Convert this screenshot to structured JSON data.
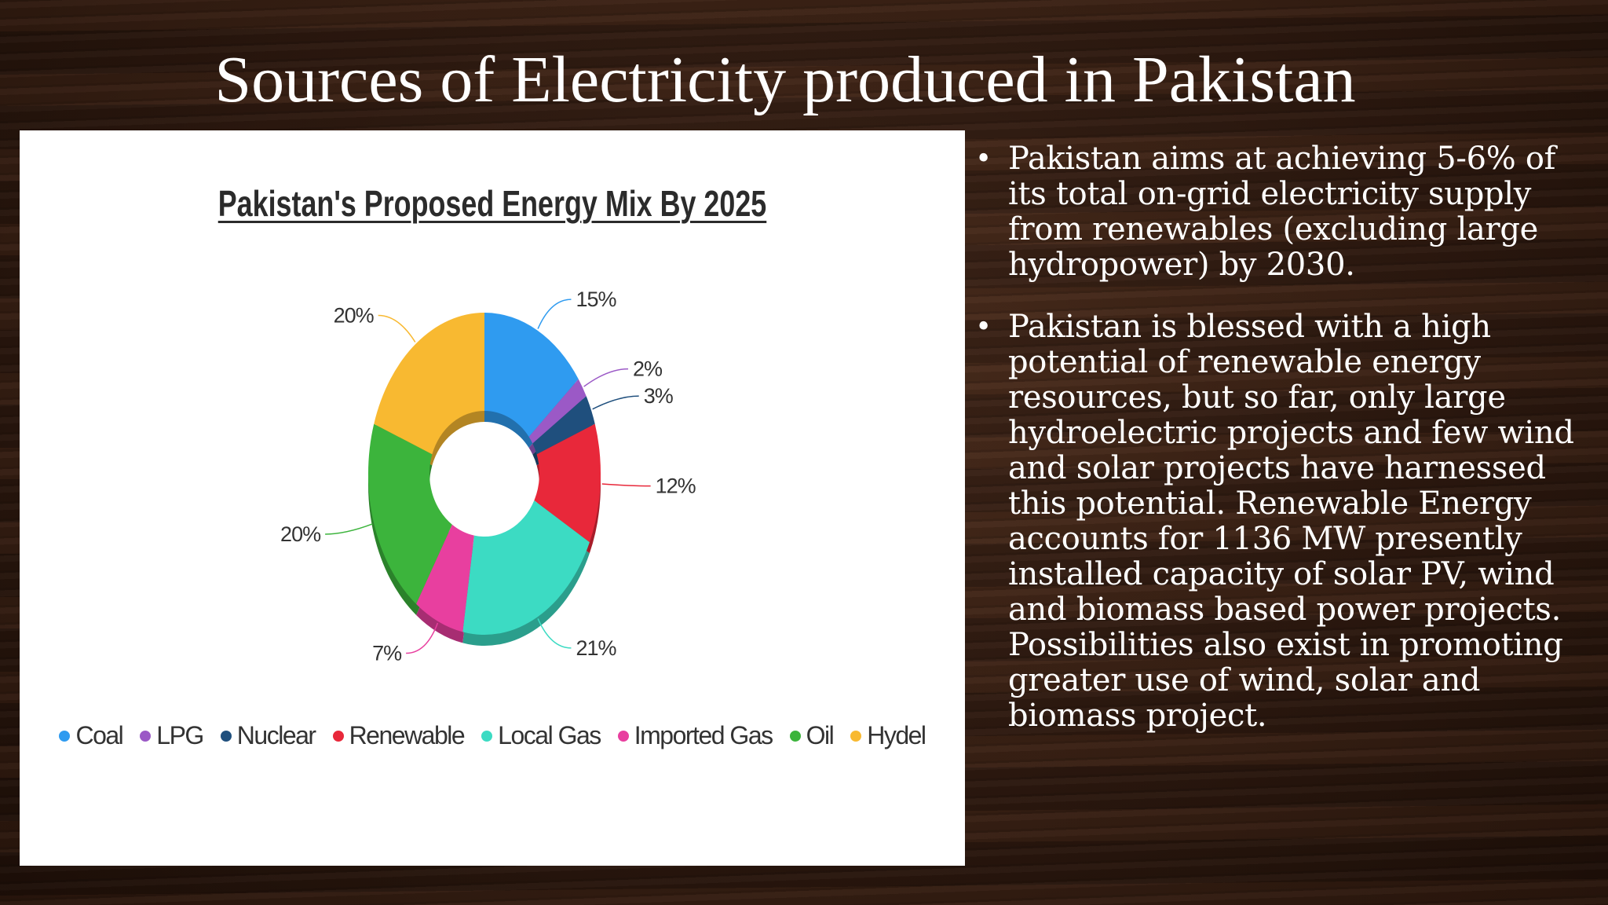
{
  "slide": {
    "title": "Sources of Electricity produced in Pakistan",
    "bullets": [
      "Pakistan aims at achieving 5-6% of its total on-grid electricity supply from renewables (excluding large hydropower) by 2030.",
      "Pakistan is blessed with a high potential of renewable energy resources, but so far, only large hydroelectric projects and few wind and solar projects have harnessed this potential. Renewable Energy accounts for 1136 MW presently installed capacity of solar PV, wind and biomass based power projects. Possibilities also exist in promoting greater use of wind, solar and biomass project."
    ]
  },
  "chart_data": {
    "type": "pie",
    "subtype": "donut",
    "title": "Pakistan's Proposed Energy Mix By 2025",
    "legend_position": "bottom",
    "categories": [
      "Coal",
      "LPG",
      "Nuclear",
      "Renewable",
      "Local Gas",
      "Imported Gas",
      "Oil",
      "Hydel"
    ],
    "values": [
      15,
      2,
      3,
      12,
      21,
      7,
      20,
      20
    ],
    "labels": [
      "15%",
      "2%",
      "3%",
      "12%",
      "21%",
      "7%",
      "20%",
      "20%"
    ],
    "colors": [
      "#2f9bf0",
      "#9b59c6",
      "#1f4f7d",
      "#e8283a",
      "#3cdbc3",
      "#e83f9f",
      "#3cb43c",
      "#f8b931"
    ]
  }
}
